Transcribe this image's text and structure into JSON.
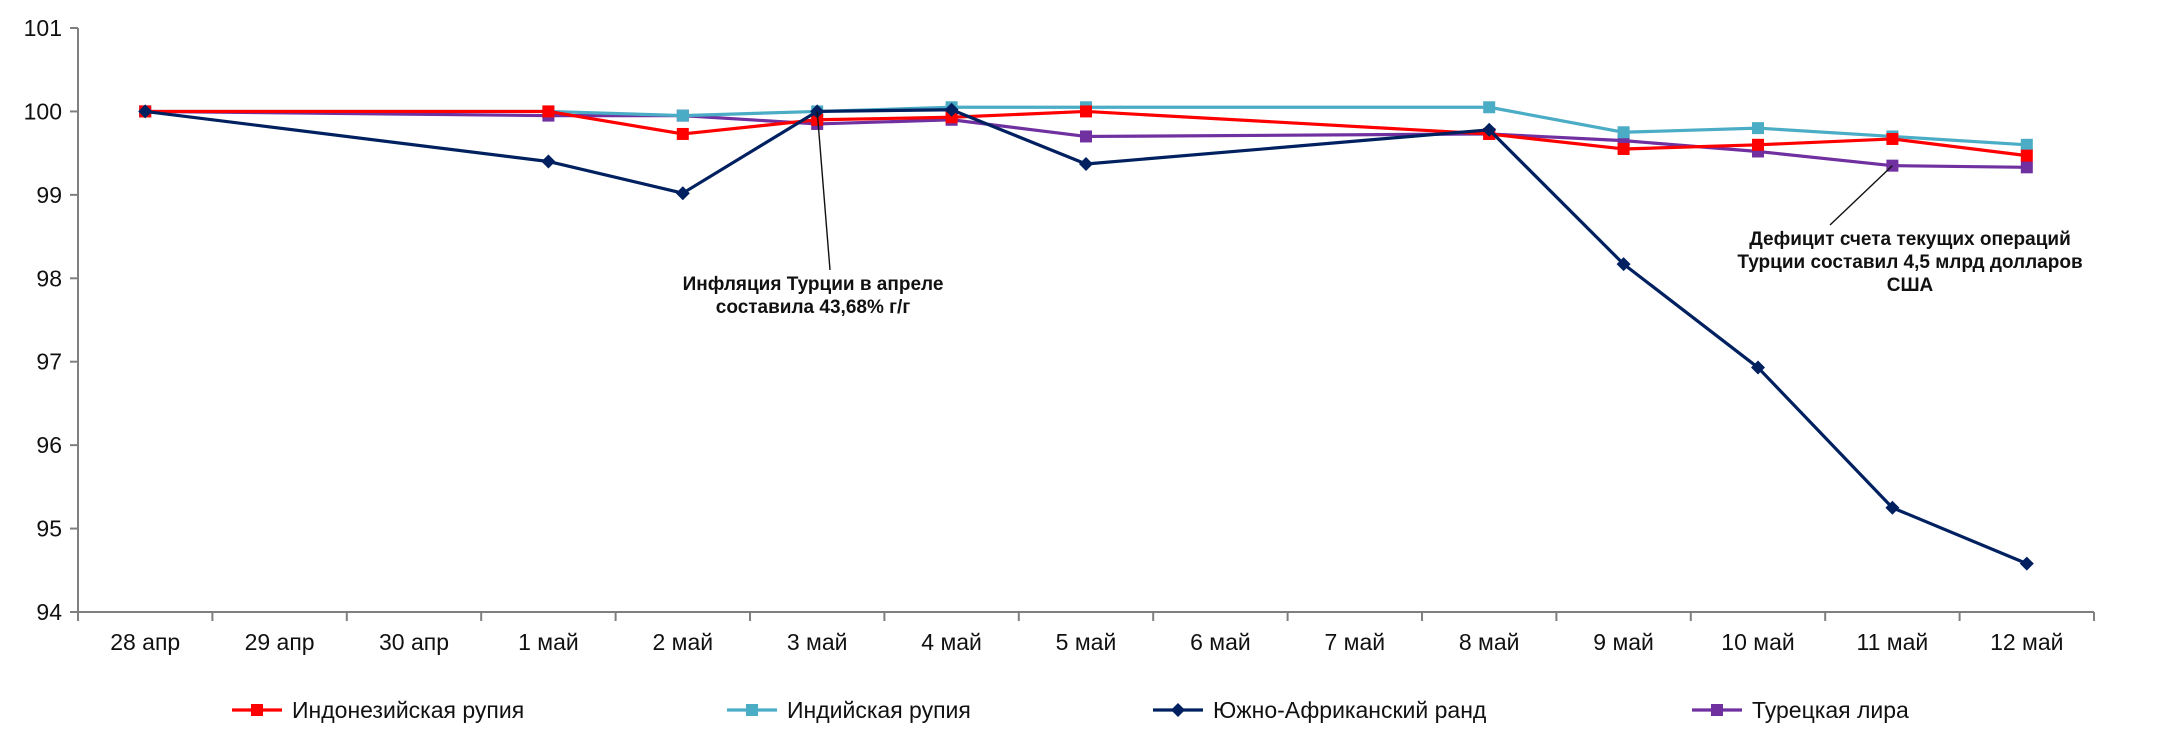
{
  "chart_data": {
    "type": "line",
    "categories": [
      "28 апр",
      "29 апр",
      "30 апр",
      "1 май",
      "2 май",
      "3 май",
      "4 май",
      "5 май",
      "6 май",
      "7 май",
      "8 май",
      "9 май",
      "10 май",
      "11 май",
      "12 май"
    ],
    "ylim": [
      94,
      101
    ],
    "yticks": [
      94,
      95,
      96,
      97,
      98,
      99,
      100,
      101
    ],
    "grid": false,
    "legend_position": "bottom",
    "series": [
      {
        "name": "Индонезийская рупия",
        "color": "#ff0000",
        "marker": "square",
        "values": [
          100.0,
          null,
          null,
          100.0,
          99.73,
          99.9,
          99.93,
          100.0,
          null,
          null,
          99.73,
          99.55,
          99.6,
          99.67,
          99.47
        ]
      },
      {
        "name": "Индийская рупия",
        "color": "#4bacc6",
        "marker": "square",
        "values": [
          100.0,
          null,
          null,
          100.0,
          99.95,
          100.0,
          100.05,
          100.05,
          null,
          null,
          100.05,
          99.75,
          99.8,
          99.7,
          99.6
        ]
      },
      {
        "name": "Южно-Африканский ранд",
        "color": "#002060",
        "marker": "diamond",
        "values": [
          100.0,
          null,
          null,
          99.4,
          99.02,
          100.0,
          100.02,
          99.37,
          null,
          null,
          99.78,
          98.17,
          96.93,
          95.25,
          94.58
        ]
      },
      {
        "name": "Турецкая лира",
        "color": "#7030a0",
        "marker": "square",
        "values": [
          100.0,
          null,
          null,
          99.95,
          99.95,
          99.85,
          99.9,
          99.7,
          null,
          null,
          99.73,
          99.65,
          99.52,
          99.35,
          99.33
        ]
      }
    ],
    "annotations": [
      {
        "lines": [
          "Инфляция Турции в апреле",
          "составила 43,68% г/г"
        ],
        "category": "3 май",
        "value": 100.0
      },
      {
        "lines": [
          "Дефицит счета текущих операций",
          "Турции составил 4,5 млрд долларов",
          "США"
        ],
        "category": "11 май",
        "value": 99.35
      }
    ]
  }
}
